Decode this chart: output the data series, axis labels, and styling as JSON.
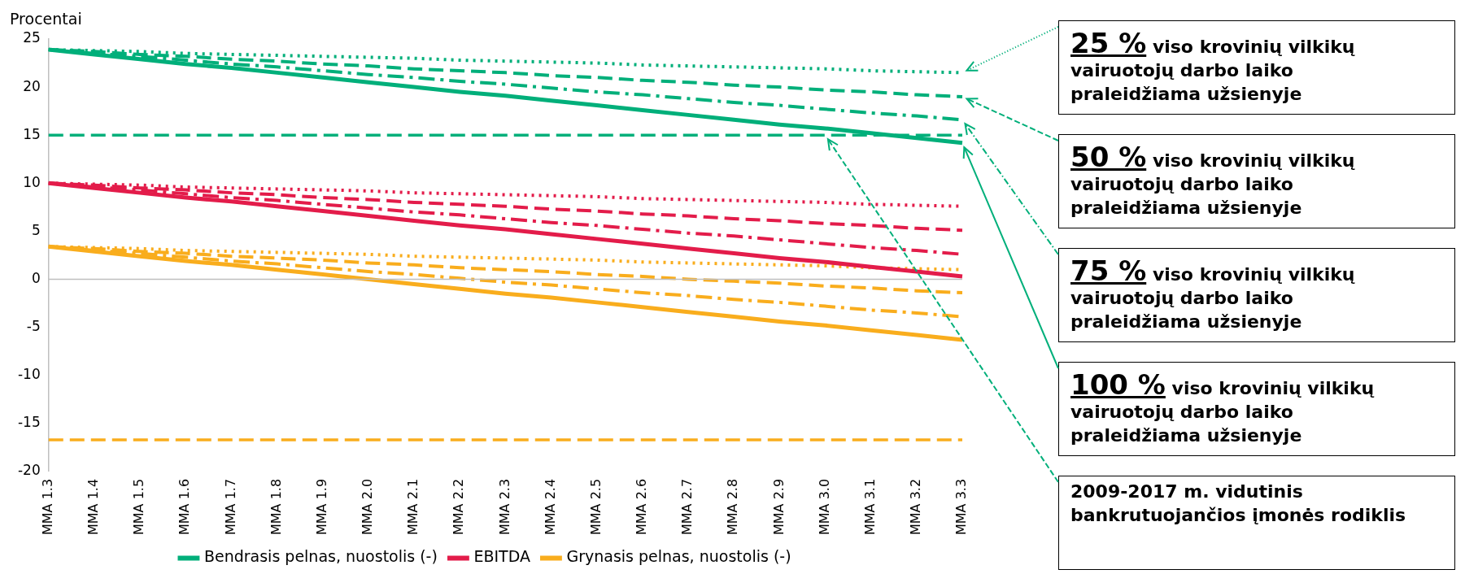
{
  "chart_data": {
    "type": "line",
    "ylabel": "Procentai",
    "categories": [
      "MMA 1.3",
      "MMA 1.4",
      "MMA 1.5",
      "MMA 1.6",
      "MMA 1.7",
      "MMA 1.8",
      "MMA 1.9",
      "MMA 2.0",
      "MMA 2.1",
      "MMA 2.2",
      "MMA 2.3",
      "MMA 2.4",
      "MMA 2.5",
      "MMA 2.6",
      "MMA 2.7",
      "MMA 2.8",
      "MMA 2.9",
      "MMA 3.0",
      "MMA 3.1",
      "MMA 3.2",
      "MMA 3.3"
    ],
    "series": [
      {
        "name": "Bendrasis pelnas, nuostolis (-)",
        "color": "#00af7a",
        "line_style": "solid",
        "values": [
          23.9,
          23.4,
          22.9,
          22.4,
          22.0,
          21.5,
          21.0,
          20.5,
          20.0,
          19.5,
          19.1,
          18.6,
          18.1,
          17.6,
          17.1,
          16.6,
          16.1,
          15.7,
          15.2,
          14.7,
          14.2
        ]
      },
      {
        "color": "#00af7a",
        "line_style": "dashdot",
        "values": [
          23.9,
          23.5,
          23.2,
          22.8,
          22.4,
          22.1,
          21.7,
          21.3,
          21.0,
          20.6,
          20.3,
          19.9,
          19.5,
          19.2,
          18.8,
          18.4,
          18.1,
          17.7,
          17.3,
          17.0,
          16.6
        ]
      },
      {
        "color": "#00af7a",
        "line_style": "dashed",
        "values": [
          23.9,
          23.7,
          23.4,
          23.2,
          22.9,
          22.7,
          22.4,
          22.2,
          21.9,
          21.7,
          21.5,
          21.2,
          21.0,
          20.7,
          20.5,
          20.2,
          20.0,
          19.7,
          19.5,
          19.2,
          19.0
        ]
      },
      {
        "color": "#00af7a",
        "line_style": "dotted",
        "values": [
          23.9,
          23.8,
          23.7,
          23.5,
          23.4,
          23.3,
          23.2,
          23.1,
          23.0,
          22.8,
          22.7,
          22.6,
          22.5,
          22.3,
          22.2,
          22.1,
          22.0,
          21.9,
          21.7,
          21.6,
          21.5
        ]
      },
      {
        "name": "EBITDA",
        "color": "#e31c4a",
        "line_style": "solid",
        "values": [
          10.0,
          9.5,
          9.0,
          8.5,
          8.1,
          7.6,
          7.1,
          6.6,
          6.1,
          5.6,
          5.2,
          4.7,
          4.2,
          3.7,
          3.2,
          2.7,
          2.2,
          1.8,
          1.3,
          0.8,
          0.3
        ]
      },
      {
        "color": "#e31c4a",
        "line_style": "dashdot",
        "values": [
          10.0,
          9.6,
          9.3,
          8.9,
          8.5,
          8.2,
          7.8,
          7.4,
          7.0,
          6.7,
          6.3,
          5.9,
          5.6,
          5.2,
          4.8,
          4.5,
          4.1,
          3.7,
          3.3,
          3.0,
          2.6
        ]
      },
      {
        "color": "#e31c4a",
        "line_style": "dashed",
        "values": [
          10.0,
          9.8,
          9.5,
          9.3,
          9.0,
          8.8,
          8.5,
          8.3,
          8.0,
          7.8,
          7.6,
          7.3,
          7.1,
          6.8,
          6.6,
          6.3,
          6.1,
          5.8,
          5.6,
          5.3,
          5.1
        ]
      },
      {
        "color": "#e31c4a",
        "line_style": "dotted",
        "values": [
          10.0,
          9.9,
          9.8,
          9.6,
          9.5,
          9.4,
          9.3,
          9.2,
          9.0,
          8.9,
          8.8,
          8.7,
          8.6,
          8.4,
          8.3,
          8.2,
          8.1,
          8.0,
          7.8,
          7.7,
          7.6
        ]
      },
      {
        "name": "Grynasis pelnas, nuostolis (-)",
        "color": "#f9ad1d",
        "line_style": "solid",
        "values": [
          3.4,
          2.9,
          2.4,
          1.9,
          1.5,
          1.0,
          0.5,
          0.0,
          -0.5,
          -1.0,
          -1.5,
          -1.9,
          -2.4,
          -2.9,
          -3.4,
          -3.9,
          -4.4,
          -4.8,
          -5.3,
          -5.8,
          -6.3
        ]
      },
      {
        "color": "#f9ad1d",
        "line_style": "dashdot",
        "values": [
          3.4,
          3.0,
          2.7,
          2.3,
          1.9,
          1.6,
          1.2,
          0.8,
          0.5,
          0.1,
          -0.3,
          -0.6,
          -1.0,
          -1.4,
          -1.7,
          -2.1,
          -2.4,
          -2.8,
          -3.2,
          -3.5,
          -3.9
        ]
      },
      {
        "color": "#f9ad1d",
        "line_style": "dashed",
        "values": [
          3.4,
          3.2,
          2.9,
          2.7,
          2.4,
          2.2,
          2.0,
          1.7,
          1.5,
          1.2,
          1.0,
          0.8,
          0.5,
          0.3,
          0.0,
          -0.2,
          -0.4,
          -0.7,
          -0.9,
          -1.2,
          -1.4
        ]
      },
      {
        "color": "#f9ad1d",
        "line_style": "dotted",
        "values": [
          3.4,
          3.3,
          3.2,
          3.0,
          2.9,
          2.8,
          2.7,
          2.6,
          2.4,
          2.3,
          2.2,
          2.1,
          2.0,
          1.8,
          1.7,
          1.6,
          1.5,
          1.4,
          1.2,
          1.1,
          1.0
        ]
      }
    ],
    "ref_lines": [
      {
        "axis": "y",
        "value": 15,
        "color": "#00af7a",
        "line_style": "dashed",
        "label": "2009-2017 m. vidutinis bankrutuojančios įmonės rodiklis"
      },
      {
        "axis": "y",
        "value": -16.7,
        "color": "#f9ad1d",
        "line_style": "dashed"
      }
    ],
    "annotations": [
      {
        "text": "25 % viso krovinių vilkikų vairuotojų darbo laiko praleidžiama užsienyje",
        "x": "MMA 3.3",
        "y": 21.5
      },
      {
        "text": "50 % viso krovinių vilkikų vairuotojų darbo laiko praleidžiama užsienyje",
        "x": "MMA 3.3",
        "y": 19.0
      },
      {
        "text": "75 % viso krovinių vilkikų vairuotojų darbo laiko praleidžiama užsienyje",
        "x": "MMA 3.3",
        "y": 16.6
      },
      {
        "text": "100 % viso krovinių vilkikų vairuotojų darbo laiko praleidžiama užsienyje",
        "x": "MMA 3.3",
        "y": 14.2
      }
    ],
    "ylim": [
      -20,
      25
    ],
    "yticks": [
      -20,
      -15,
      -10,
      -5,
      0,
      5,
      10,
      15,
      20,
      25
    ],
    "grid": false,
    "legend": "bottom",
    "marker": "none"
  }
}
